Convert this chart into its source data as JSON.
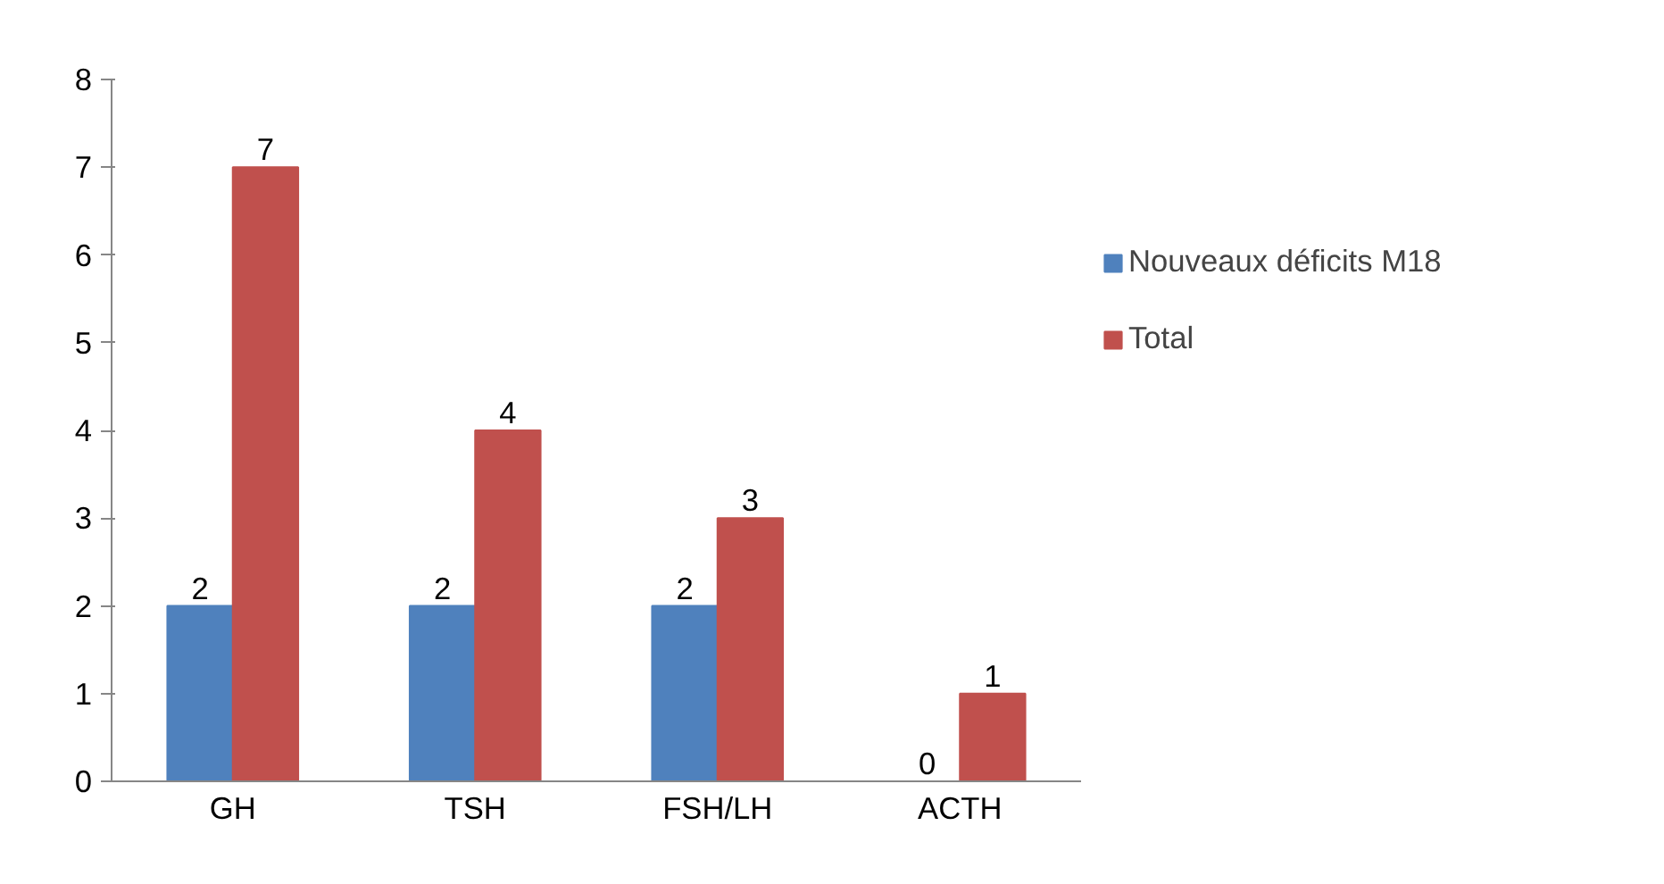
{
  "chart_data": {
    "type": "bar",
    "categories": [
      "GH",
      "TSH",
      "FSH/LH",
      "ACTH"
    ],
    "series": [
      {
        "name": "Nouveaux déficits M18",
        "color": "#4f81bd",
        "values": [
          2,
          2,
          2,
          0
        ]
      },
      {
        "name": "Total",
        "color": "#c0504d",
        "values": [
          7,
          4,
          3,
          1
        ]
      }
    ],
    "ylim": [
      0,
      8
    ],
    "yticks": [
      0,
      1,
      2,
      3,
      4,
      5,
      6,
      7,
      8
    ],
    "grid": false,
    "legend": "right",
    "data_labels": true
  }
}
